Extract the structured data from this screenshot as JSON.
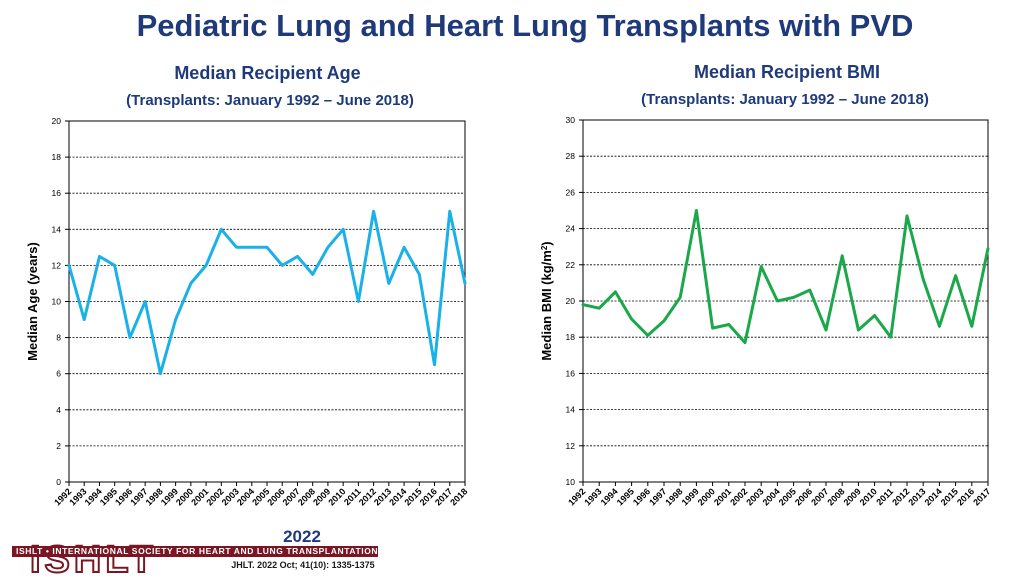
{
  "title": "Pediatric Lung and Heart Lung Transplants with PVD",
  "charts": [
    {
      "subtitle": "Median Recipient Age",
      "period": "(Transplants: January 1992 – June 2018)",
      "color": "#1ab0e8"
    },
    {
      "subtitle": "Median Recipient BMI",
      "period": "(Transplants: January 1992 – June 2018)",
      "color": "#1aa84a"
    }
  ],
  "logo": {
    "year": "2022",
    "acronym": "ISHLT",
    "org": "ISHLT • INTERNATIONAL SOCIETY FOR HEART AND LUNG TRANSPLANTATION",
    "citation": "JHLT. 2022 Oct; 41(10): 1335-1375"
  },
  "chart_data": [
    {
      "type": "line",
      "title": "Median Recipient Age",
      "xlabel": "",
      "ylabel": "Median Age (years)",
      "ylim": [
        0,
        20
      ],
      "yticks": [
        0,
        2,
        4,
        6,
        8,
        10,
        12,
        14,
        16,
        18,
        20
      ],
      "grid": true,
      "x": [
        "1992",
        "1993",
        "1994",
        "1995",
        "1996",
        "1997",
        "1998",
        "1999",
        "2000",
        "2001",
        "2002",
        "2003",
        "2004",
        "2005",
        "2006",
        "2007",
        "2008",
        "2009",
        "2010",
        "2011",
        "2012",
        "2013",
        "2014",
        "2015",
        "2016",
        "2017",
        "2018"
      ],
      "series": [
        {
          "name": "Median Age",
          "values": [
            12,
            9,
            12.5,
            12,
            8,
            10,
            6,
            9,
            11,
            12,
            14,
            13,
            13,
            13,
            12,
            12.5,
            11.5,
            13,
            14,
            10,
            15,
            11,
            13,
            11.5,
            6.5,
            15,
            11
          ]
        }
      ]
    },
    {
      "type": "line",
      "title": "Median Recipient BMI",
      "xlabel": "",
      "ylabel": "Median BMI (kg/m²)",
      "ylim": [
        10,
        30
      ],
      "yticks": [
        10,
        12,
        14,
        16,
        18,
        20,
        22,
        24,
        26,
        28,
        30
      ],
      "grid": true,
      "x": [
        "1992",
        "1993",
        "1994",
        "1995",
        "1996",
        "1997",
        "1998",
        "1999",
        "2000",
        "2001",
        "2002",
        "2003",
        "2004",
        "2005",
        "2006",
        "2007",
        "2008",
        "2009",
        "2010",
        "2011",
        "2012",
        "2013",
        "2014",
        "2015",
        "2016",
        "2017"
      ],
      "series": [
        {
          "name": "Median BMI",
          "values": [
            19.8,
            19.6,
            20.5,
            19.0,
            18.1,
            18.9,
            20.2,
            25.0,
            18.5,
            18.7,
            17.7,
            21.9,
            20.0,
            20.2,
            20.6,
            18.4,
            22.5,
            18.4,
            19.2,
            18.0,
            24.7,
            21.2,
            18.6,
            21.4,
            18.6,
            22.9
          ]
        }
      ]
    }
  ]
}
